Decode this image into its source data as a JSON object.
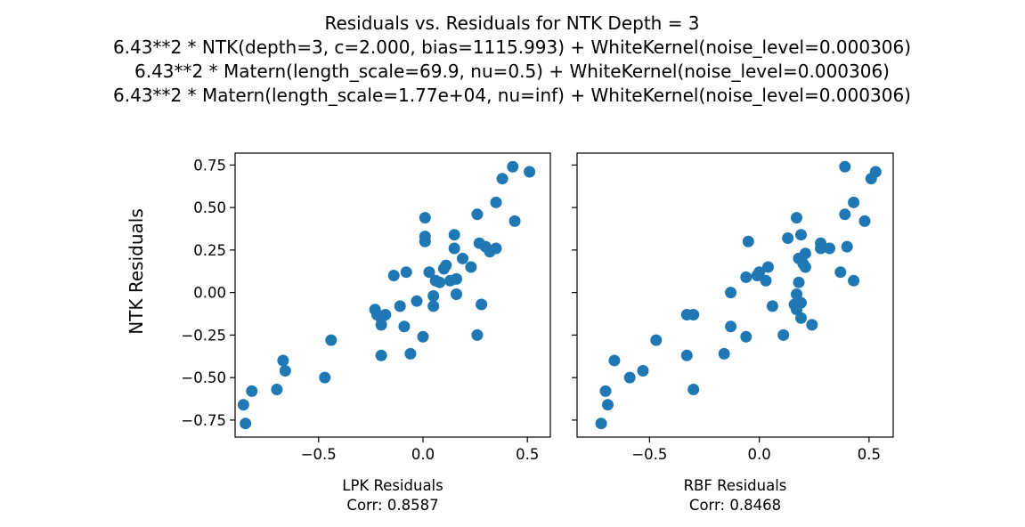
{
  "figure": {
    "title_lines": [
      "Residuals vs. Residuals for NTK Depth = 3",
      "6.43**2 * NTK(depth=3, c=2.000, bias=1115.993) + WhiteKernel(noise_level=0.000306)",
      "6.43**2 * Matern(length_scale=69.9, nu=0.5) + WhiteKernel(noise_level=0.000306)",
      "6.43**2 * Matern(length_scale=1.77e+04, nu=inf) + WhiteKernel(noise_level=0.000306)"
    ],
    "marker_color": "#1f77b4"
  },
  "chart_data": [
    {
      "type": "scatter",
      "xlabel": "LPK Residuals",
      "xlabel2": "Corr: 0.8587",
      "ylabel": "NTK Residuals",
      "xlim": [
        -0.9,
        0.61
      ],
      "ylim": [
        -0.85,
        0.82
      ],
      "x_ticks": [
        -0.5,
        0.0,
        0.5
      ],
      "x_tick_labels": [
        "−0.5",
        "0.0",
        "0.5"
      ],
      "y_ticks": [
        0.75,
        0.5,
        0.25,
        0.0,
        -0.25,
        -0.5,
        -0.75
      ],
      "y_tick_labels": [
        "0.75",
        "0.50",
        "0.25",
        "0.00",
        "−0.25",
        "−0.50",
        "−0.75"
      ],
      "points": [
        [
          0.43,
          0.74
        ],
        [
          0.51,
          0.71
        ],
        [
          0.38,
          0.67
        ],
        [
          0.35,
          0.53
        ],
        [
          0.26,
          0.46
        ],
        [
          0.44,
          0.42
        ],
        [
          0.01,
          0.44
        ],
        [
          0.15,
          0.34
        ],
        [
          0.01,
          0.33
        ],
        [
          0.01,
          0.3
        ],
        [
          0.27,
          0.29
        ],
        [
          0.3,
          0.27
        ],
        [
          0.15,
          0.26
        ],
        [
          0.35,
          0.26
        ],
        [
          0.32,
          0.24
        ],
        [
          0.19,
          0.2
        ],
        [
          0.23,
          0.15
        ],
        [
          0.11,
          0.16
        ],
        [
          0.1,
          0.14
        ],
        [
          0.03,
          0.12
        ],
        [
          -0.14,
          0.1
        ],
        [
          -0.08,
          0.12
        ],
        [
          0.06,
          0.07
        ],
        [
          0.08,
          0.06
        ],
        [
          0.13,
          0.07
        ],
        [
          0.16,
          0.08
        ],
        [
          0.05,
          -0.02
        ],
        [
          0.16,
          -0.01
        ],
        [
          -0.03,
          -0.05
        ],
        [
          -0.11,
          -0.08
        ],
        [
          0.05,
          -0.08
        ],
        [
          0.28,
          -0.07
        ],
        [
          -0.23,
          -0.1
        ],
        [
          -0.22,
          -0.13
        ],
        [
          -0.18,
          -0.13
        ],
        [
          -0.2,
          -0.15
        ],
        [
          -0.2,
          -0.19
        ],
        [
          -0.09,
          -0.2
        ],
        [
          0.0,
          -0.26
        ],
        [
          0.26,
          -0.25
        ],
        [
          -0.44,
          -0.28
        ],
        [
          -0.2,
          -0.37
        ],
        [
          -0.06,
          -0.36
        ],
        [
          -0.67,
          -0.4
        ],
        [
          -0.66,
          -0.46
        ],
        [
          -0.47,
          -0.5
        ],
        [
          -0.82,
          -0.58
        ],
        [
          -0.7,
          -0.57
        ],
        [
          -0.86,
          -0.66
        ],
        [
          -0.85,
          -0.77
        ]
      ]
    },
    {
      "type": "scatter",
      "xlabel": "RBF Residuals",
      "xlabel2": "Corr: 0.8468",
      "xlim": [
        -0.83,
        0.61
      ],
      "ylim": [
        -0.85,
        0.82
      ],
      "x_ticks": [
        -0.5,
        0.0,
        0.5
      ],
      "x_tick_labels": [
        "−0.5",
        "0.0",
        "0.5"
      ],
      "y_ticks": [
        0.75,
        0.5,
        0.25,
        0.0,
        -0.25,
        -0.5,
        -0.75
      ],
      "points": [
        [
          0.39,
          0.74
        ],
        [
          0.53,
          0.71
        ],
        [
          0.51,
          0.67
        ],
        [
          0.43,
          0.53
        ],
        [
          0.39,
          0.46
        ],
        [
          0.48,
          0.42
        ],
        [
          0.17,
          0.44
        ],
        [
          0.19,
          0.34
        ],
        [
          0.13,
          0.32
        ],
        [
          -0.05,
          0.3
        ],
        [
          0.28,
          0.29
        ],
        [
          0.4,
          0.27
        ],
        [
          0.28,
          0.26
        ],
        [
          0.32,
          0.26
        ],
        [
          0.21,
          0.23
        ],
        [
          0.18,
          0.2
        ],
        [
          0.2,
          0.17
        ],
        [
          0.21,
          0.15
        ],
        [
          0.04,
          0.15
        ],
        [
          0.0,
          0.12
        ],
        [
          -0.01,
          0.1
        ],
        [
          -0.06,
          0.09
        ],
        [
          0.37,
          0.12
        ],
        [
          0.03,
          0.07
        ],
        [
          0.18,
          0.06
        ],
        [
          0.43,
          0.07
        ],
        [
          -0.13,
          0.0
        ],
        [
          0.17,
          -0.01
        ],
        [
          0.19,
          -0.06
        ],
        [
          0.16,
          -0.07
        ],
        [
          0.06,
          -0.08
        ],
        [
          0.17,
          -0.1
        ],
        [
          -0.33,
          -0.13
        ],
        [
          -0.3,
          -0.13
        ],
        [
          0.19,
          -0.15
        ],
        [
          0.24,
          -0.19
        ],
        [
          -0.13,
          -0.2
        ],
        [
          -0.06,
          -0.26
        ],
        [
          0.11,
          -0.25
        ],
        [
          -0.47,
          -0.28
        ],
        [
          -0.33,
          -0.37
        ],
        [
          -0.16,
          -0.36
        ],
        [
          -0.66,
          -0.4
        ],
        [
          -0.53,
          -0.46
        ],
        [
          -0.59,
          -0.5
        ],
        [
          -0.3,
          -0.57
        ],
        [
          -0.7,
          -0.58
        ],
        [
          -0.69,
          -0.66
        ],
        [
          -0.72,
          -0.77
        ]
      ]
    }
  ]
}
